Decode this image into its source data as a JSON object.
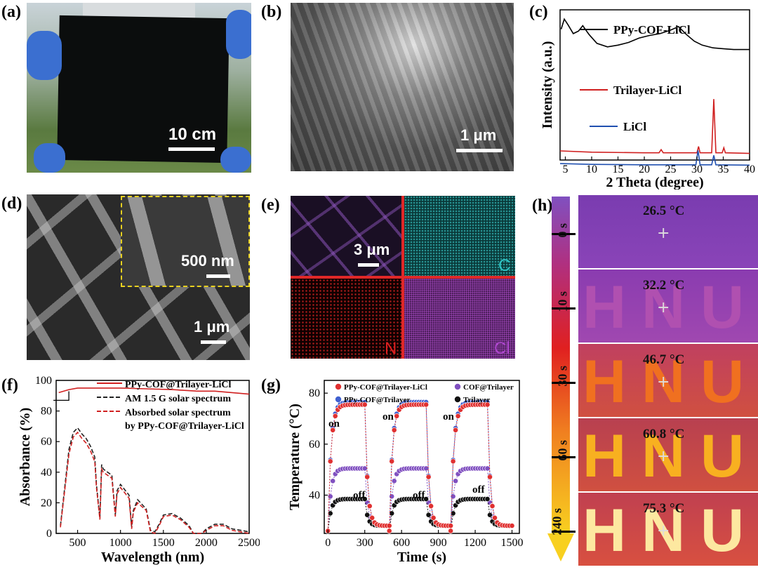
{
  "panels": {
    "a": {
      "label": "(a)",
      "scale": "10 cm"
    },
    "b": {
      "label": "(b)",
      "scale": "1 μm"
    },
    "c": {
      "label": "(c)"
    },
    "d": {
      "label": "(d)",
      "scale_inset": "500 nm",
      "scale": "1 μm"
    },
    "e": {
      "label": "(e)",
      "scale": "3 μm",
      "elements": [
        "C",
        "N",
        "Cl"
      ],
      "colors": {
        "C": "#2ec4c4",
        "N": "#e02020",
        "Cl": "#b048d0"
      }
    },
    "f": {
      "label": "(f)"
    },
    "g": {
      "label": "(g)"
    },
    "h": {
      "label": "(h)",
      "times": [
        "0 s",
        "10 s",
        "30 s",
        "60 s",
        "240 s"
      ],
      "temps": [
        "26.5 °C",
        "32.2 °C",
        "46.7 °C",
        "60.8 °C",
        "75.3 °C"
      ]
    }
  },
  "chart_data": [
    {
      "panel": "c",
      "type": "line",
      "xlabel": "2 Theta (degree)",
      "ylabel": "Intensity (a.u.)",
      "xlim": [
        4,
        40
      ],
      "xticks": [
        "5",
        "10",
        "15",
        "20",
        "25",
        "30",
        "35",
        "40"
      ],
      "series": [
        {
          "name": "PPy-COF-LiCl",
          "color": "#000000",
          "x": [
            4.2,
            4.8,
            5.5,
            6.5,
            7.5,
            8.3,
            9.5,
            11,
            13,
            15,
            17,
            19,
            21,
            23,
            25,
            26.5,
            28,
            29.5,
            31,
            33,
            35,
            37,
            40
          ],
          "y": [
            0.72,
            0.95,
            0.82,
            0.62,
            0.68,
            0.8,
            0.6,
            0.4,
            0.32,
            0.36,
            0.42,
            0.52,
            0.58,
            0.62,
            0.7,
            0.78,
            0.6,
            0.45,
            0.36,
            0.3,
            0.28,
            0.26,
            0.26
          ]
        },
        {
          "name": "Trilayer-LiCl",
          "color": "#d02020",
          "x": [
            4,
            10,
            20,
            22.8,
            23.2,
            23.6,
            26,
            30,
            30.3,
            30.6,
            32.8,
            33.2,
            33.6,
            34.8,
            35.1,
            35.4,
            40
          ],
          "y": [
            0.1,
            0.08,
            0.07,
            0.07,
            0.12,
            0.07,
            0.07,
            0.07,
            0.17,
            0.07,
            0.07,
            0.92,
            0.07,
            0.07,
            0.15,
            0.07,
            0.06
          ]
        },
        {
          "name": "LiCl",
          "color": "#2050b0",
          "x": [
            4,
            10,
            20,
            29.8,
            30.2,
            30.6,
            32.8,
            33.2,
            33.6,
            40
          ],
          "y": [
            0.09,
            0.07,
            0.06,
            0.06,
            0.44,
            0.06,
            0.06,
            0.31,
            0.06,
            0.05
          ]
        }
      ]
    },
    {
      "panel": "f",
      "type": "line",
      "xlabel": "Wavelength (nm)",
      "ylabel": "Absorbance (%)",
      "xlim": [
        250,
        2500
      ],
      "ylim": [
        0,
        100
      ],
      "xticks": [
        "500",
        "1000",
        "1500",
        "2000",
        "2500"
      ],
      "yticks": [
        "0",
        "20",
        "40",
        "60",
        "80",
        "100"
      ],
      "series": [
        {
          "name": "PPy-COF@Trilayer-LiCl",
          "color": "#d02020",
          "style": "solid",
          "x": [
            280,
            400,
            500,
            700,
            1000,
            1300,
            1600,
            1900,
            2100,
            2300,
            2500
          ],
          "y": [
            92,
            94,
            95,
            95,
            95,
            94.5,
            94,
            93,
            93,
            92,
            91
          ]
        },
        {
          "name": "AM 1.5 G solar spectrum",
          "color": "#222222",
          "style": "dash",
          "x": [
            300,
            350,
            400,
            450,
            500,
            550,
            600,
            650,
            700,
            720,
            760,
            780,
            800,
            900,
            940,
            960,
            1000,
            1100,
            1130,
            1150,
            1200,
            1300,
            1350,
            1400,
            1450,
            1500,
            1600,
            1700,
            1800,
            1850,
            1950,
            2000,
            2100,
            2200,
            2300,
            2400,
            2500
          ],
          "y": [
            5,
            30,
            55,
            66,
            69,
            65,
            62,
            57,
            50,
            32,
            10,
            45,
            42,
            38,
            12,
            28,
            32,
            25,
            4,
            15,
            22,
            16,
            2,
            1,
            6,
            12,
            13,
            10,
            5,
            0,
            0,
            3,
            6,
            6,
            3,
            2,
            1
          ]
        },
        {
          "name": "Absorbed solar spectrum by PPy-COF@Trilayer-LiCl",
          "color": "#d02020",
          "style": "dash",
          "x": [
            300,
            350,
            400,
            450,
            500,
            550,
            600,
            650,
            700,
            720,
            760,
            780,
            800,
            900,
            940,
            960,
            1000,
            1100,
            1130,
            1150,
            1200,
            1300,
            1350,
            1400,
            1450,
            1500,
            1600,
            1700,
            1800,
            1850,
            1950,
            2000,
            2100,
            2200,
            2300,
            2400,
            2500
          ],
          "y": [
            4,
            28,
            52,
            63,
            66,
            62,
            59,
            54,
            47,
            30,
            9,
            42,
            40,
            36,
            11,
            26,
            30,
            23,
            3,
            14,
            20,
            15,
            1,
            0,
            5,
            11,
            12,
            9,
            4,
            0,
            0,
            2,
            5,
            5,
            2,
            1,
            0
          ]
        }
      ],
      "legend": [
        "PPy-COF@Trilayer-LiCl",
        "AM 1.5 G solar spectrum",
        "Absorbed solar spectrum",
        "by PPy-COF@Trilayer-LiCl"
      ]
    },
    {
      "panel": "g",
      "type": "scatter",
      "xlabel": "Time (s)",
      "ylabel": "Temperature (°C)",
      "xlim": [
        -30,
        1560
      ],
      "ylim": [
        25,
        85
      ],
      "xticks": [
        "0",
        "300",
        "600",
        "900",
        "1200",
        "1500"
      ],
      "yticks": [
        "40",
        "60",
        "80"
      ],
      "annotations": [
        "on",
        "on",
        "on",
        "off",
        "off",
        "off"
      ],
      "cycles": [
        0,
        500,
        1000
      ],
      "series": [
        {
          "name": "PPy-COF@Trilayer-LiCl",
          "color": "#e03030",
          "plateau": 75.5,
          "start": 26
        },
        {
          "name": "PPy-COF@Trilayer",
          "color": "#4060d0",
          "plateau": 76.5,
          "start": 26
        },
        {
          "name": "COF@Trilayer",
          "color": "#8050c0",
          "plateau": 50.5,
          "start": 26
        },
        {
          "name": "Trilayer",
          "color": "#111111",
          "plateau": 38.5,
          "start": 26
        }
      ]
    }
  ]
}
